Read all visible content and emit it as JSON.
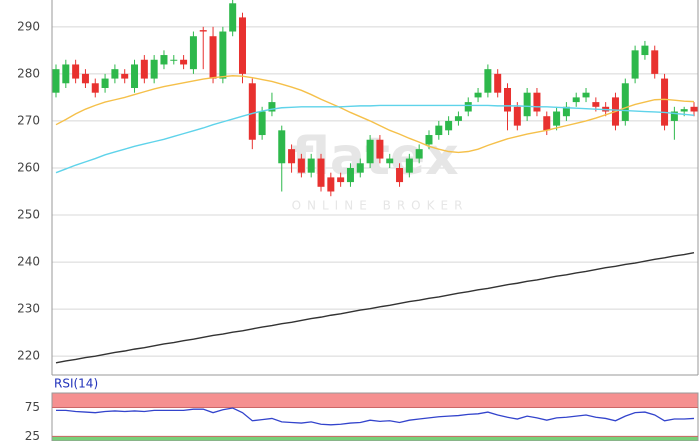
{
  "chart_data": [
    {
      "type": "candlestick",
      "open": [
        276,
        278,
        282,
        280,
        278,
        277,
        279,
        280,
        277,
        283,
        279,
        282,
        283,
        283,
        281,
        289.3,
        288,
        279,
        289,
        292,
        278,
        267,
        272,
        261,
        264,
        262,
        259,
        262,
        258,
        258,
        257,
        259,
        261,
        266,
        261,
        260,
        259,
        262,
        265,
        267,
        268,
        270,
        272,
        275,
        276,
        280,
        277,
        273,
        271,
        276,
        271,
        269,
        271,
        274,
        275,
        274,
        273,
        275,
        270,
        279,
        284,
        285,
        279,
        270,
        272,
        273
      ],
      "high": [
        282,
        283,
        283,
        281,
        279,
        280,
        282,
        281,
        283,
        284,
        284,
        285,
        284,
        284,
        289,
        290,
        290,
        290,
        296,
        293,
        279,
        273,
        276,
        269,
        265,
        263,
        263,
        263,
        259,
        259,
        261,
        262,
        267,
        267,
        263,
        261,
        263,
        265,
        268,
        270,
        271,
        272,
        275,
        277,
        282,
        281,
        278,
        274,
        277,
        277,
        272,
        273,
        274,
        276,
        277,
        275,
        274,
        276,
        279,
        286,
        287,
        286,
        280,
        273,
        273,
        274
      ],
      "low": [
        275,
        277,
        278,
        277,
        275,
        276,
        278,
        278,
        276,
        278,
        278,
        281,
        282,
        281,
        280,
        281,
        278,
        278,
        288,
        278,
        264,
        266,
        271,
        255,
        259,
        258,
        258,
        255,
        254,
        256,
        256,
        258,
        260,
        261,
        260,
        256,
        258,
        261,
        264,
        266,
        267,
        269,
        271,
        274,
        275,
        275,
        268,
        268,
        270,
        271,
        267,
        268,
        270,
        273,
        274,
        272,
        271,
        268,
        269,
        278,
        283,
        279,
        268,
        266,
        271,
        271
      ],
      "close": [
        281,
        282,
        279,
        278,
        276,
        279,
        281,
        279,
        282,
        279,
        283,
        284,
        283,
        282,
        288,
        289,
        279,
        289,
        295,
        280,
        266,
        272,
        274,
        268,
        261,
        259,
        262,
        256,
        255,
        257,
        260,
        261,
        266,
        262,
        262,
        257,
        262,
        264,
        267,
        269,
        270,
        271,
        274,
        276,
        281,
        276,
        272,
        269,
        276,
        272,
        268,
        272,
        273,
        275,
        276,
        273,
        272,
        269,
        278,
        285,
        286,
        280,
        269,
        272,
        272.5,
        272
      ],
      "up_color": "#2db84b",
      "down_color": "#e8312f",
      "overlays": [
        {
          "color": "#f5c04a",
          "values": [
            269.2,
            270.3,
            271.5,
            272.5,
            273.3,
            274,
            274.5,
            275,
            275.6,
            276.2,
            276.8,
            277.3,
            277.7,
            278.1,
            278.5,
            278.9,
            279.2,
            279.4,
            279.6,
            279.5,
            279.2,
            278.8,
            278.4,
            277.8,
            277.2,
            276.5,
            275.6,
            274.6,
            273.7,
            272.8,
            271.8,
            270.9,
            270,
            269,
            268,
            267.2,
            266.3,
            265.5,
            264.6,
            264,
            263.5,
            263.3,
            263.5,
            264,
            264.8,
            265.5,
            266.2,
            266.7,
            267.2,
            267.6,
            268,
            268.5,
            269,
            269.5,
            270,
            270.6,
            271.3,
            272,
            272.8,
            273.5,
            274,
            274.5,
            274.6,
            274.4,
            274.2,
            274.1
          ]
        },
        {
          "color": "#5fd3ea",
          "values": [
            259,
            259.8,
            260.6,
            261.3,
            262,
            262.8,
            263.4,
            264,
            264.6,
            265.1,
            265.6,
            266.1,
            266.7,
            267.3,
            267.9,
            268.5,
            269.2,
            269.8,
            270.4,
            271,
            271.6,
            272.1,
            272.5,
            272.8,
            272.9,
            273,
            273,
            273,
            273,
            273,
            273.1,
            273.2,
            273.2,
            273.3,
            273.3,
            273.3,
            273.3,
            273.3,
            273.3,
            273.3,
            273.3,
            273.3,
            273.3,
            273.3,
            273.3,
            273.2,
            273.2,
            273.2,
            273.1,
            273,
            273,
            272.9,
            272.8,
            272.7,
            272.6,
            272.5,
            272.4,
            272.3,
            272.2,
            272.1,
            272,
            271.9,
            271.8,
            271.6,
            271.4,
            271.2
          ]
        },
        {
          "color": "#333333",
          "values": [
            218.6,
            219,
            219.3,
            219.7,
            220,
            220.4,
            220.8,
            221.1,
            221.5,
            221.8,
            222.2,
            222.6,
            222.9,
            223.3,
            223.6,
            224,
            224.4,
            224.7,
            225.1,
            225.4,
            225.8,
            226.2,
            226.5,
            226.9,
            227.2,
            227.6,
            228,
            228.3,
            228.7,
            229,
            229.4,
            229.8,
            230.1,
            230.5,
            230.8,
            231.2,
            231.6,
            231.9,
            232.3,
            232.6,
            233,
            233.4,
            233.7,
            234.1,
            234.4,
            234.8,
            235.2,
            235.5,
            235.9,
            236.2,
            236.6,
            237,
            237.3,
            237.7,
            238,
            238.4,
            238.8,
            239.1,
            239.5,
            239.8,
            240.2,
            240.6,
            240.9,
            241.3,
            241.6,
            242
          ]
        }
      ],
      "ylim": [
        216,
        295.7
      ],
      "yticks": [
        220,
        230,
        240,
        250,
        260,
        270,
        280,
        290
      ],
      "grid": true
    },
    {
      "type": "line",
      "title": "RSI(14)",
      "color": "#3344cc",
      "values": [
        70,
        70,
        68,
        67,
        66,
        68,
        69,
        68,
        69,
        68,
        70,
        70,
        70,
        70,
        72,
        72,
        66,
        71,
        74,
        66,
        52,
        54,
        56,
        50,
        49,
        48,
        50,
        46,
        45,
        46,
        48,
        49,
        53,
        51,
        52,
        49,
        53,
        55,
        57,
        59,
        60,
        61,
        63,
        64,
        67,
        62,
        58,
        55,
        60,
        57,
        53,
        57,
        58,
        60,
        62,
        58,
        56,
        52,
        60,
        66,
        67,
        62,
        52,
        55,
        55,
        56
      ],
      "ylim": [
        17,
        100
      ],
      "yticks": [
        25,
        75
      ],
      "upper_band_color": "#f59090",
      "lower_band_color": "#79cf79"
    }
  ],
  "watermark": {
    "brand": "flatex",
    "tagline": "ONLINE BROKER"
  }
}
